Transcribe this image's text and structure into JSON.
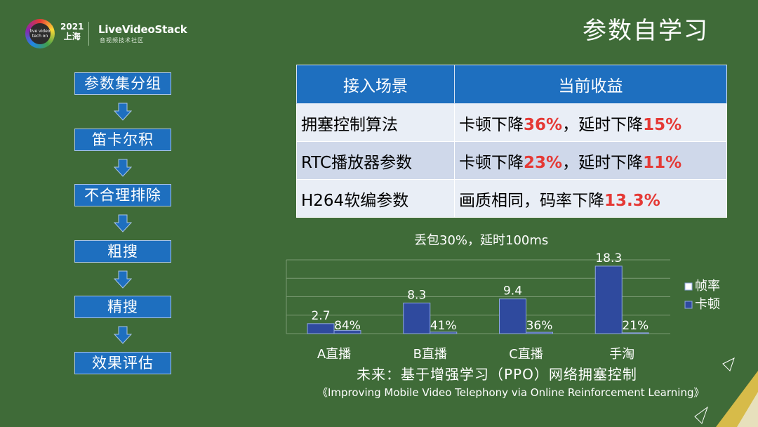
{
  "header": {
    "logo_badge": "live video tech on",
    "logo_year": "2021",
    "logo_city": "上海",
    "brand": "LiveVideoStack",
    "brand_sub": "音视频技术社区",
    "title": "参数自学习"
  },
  "flow": {
    "steps": [
      "参数集分组",
      "笛卡尔积",
      "不合理排除",
      "粗搜",
      "精搜",
      "效果评估"
    ]
  },
  "table": {
    "headers": [
      "接入场景",
      "当前收益"
    ],
    "rows": [
      {
        "scene": "拥塞控制算法",
        "pre1": "卡顿下降",
        "v1": "36%",
        "mid": "，延时下降",
        "v2": "15%"
      },
      {
        "scene": "RTC播放器参数",
        "pre1": "卡顿下降",
        "v1": "23%",
        "mid": "，延时下降",
        "v2": "11%"
      },
      {
        "scene": "H264软编参数",
        "pre1": "画质相同，码率下降",
        "v1": "13.3%",
        "mid": "",
        "v2": ""
      }
    ]
  },
  "chart_data": {
    "type": "bar",
    "title": "丢包30%，延时100ms",
    "categories": [
      "A直播",
      "B直播",
      "C直播",
      "手淘"
    ],
    "series": [
      {
        "name": "帧率",
        "values": [
          2.7,
          8.3,
          9.4,
          18.3
        ],
        "labels": [
          "2.7",
          "8.3",
          "9.4",
          "18.3"
        ]
      },
      {
        "name": "卡顿",
        "values": [
          0.84,
          0.41,
          0.36,
          0.21
        ],
        "labels": [
          "84%",
          "41%",
          "36%",
          "21%"
        ]
      }
    ],
    "ylim": [
      0,
      20
    ],
    "grid": true,
    "legend": "right",
    "colors": {
      "bar": "#2f4a9e",
      "bar_border": "#8fa6e0"
    }
  },
  "footer": {
    "line1": "未来：基于增强学习（PPO）网络拥塞控制",
    "line2": "《Improving Mobile Video Telephony via Online Reinforcement Learning》"
  }
}
